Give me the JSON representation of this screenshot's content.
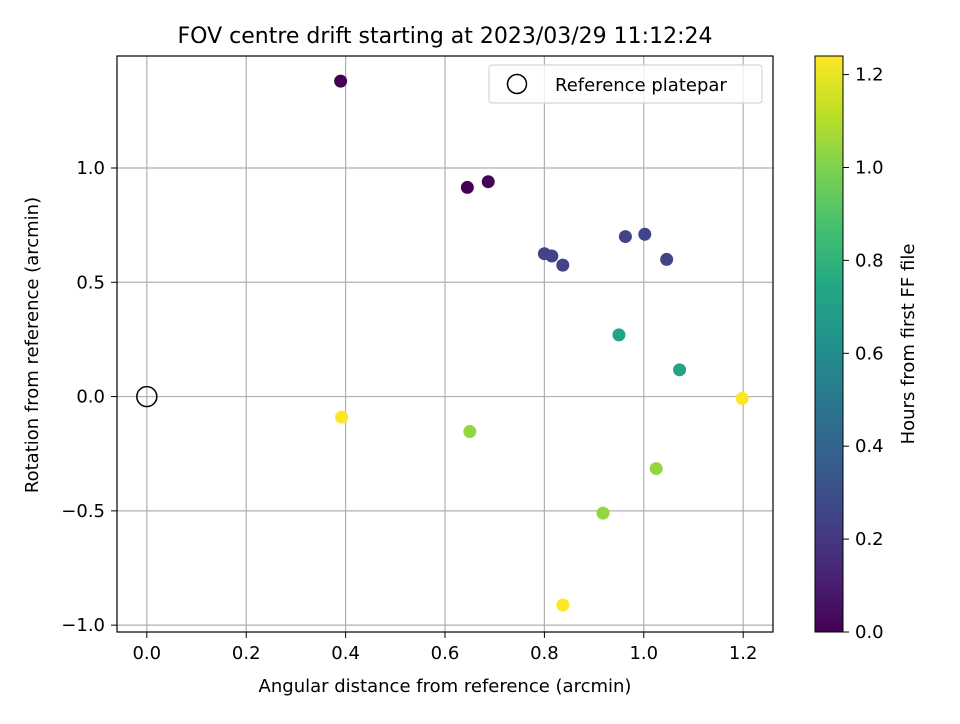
{
  "chart_data": {
    "type": "scatter",
    "title": "FOV centre drift starting at 2023/03/29 11:12:24",
    "xlabel": "Angular distance from reference (arcmin)",
    "ylabel": "Rotation from reference (arcmin)",
    "xlim": [
      -0.06,
      1.26
    ],
    "ylim": [
      -1.03,
      1.49
    ],
    "xticks": [
      0.0,
      0.2,
      0.4,
      0.6,
      0.8,
      1.0,
      1.2
    ],
    "xtick_labels": [
      "0.0",
      "0.2",
      "0.4",
      "0.6",
      "0.8",
      "1.0",
      "1.2"
    ],
    "yticks": [
      -1.0,
      -0.5,
      0.0,
      0.5,
      1.0
    ],
    "ytick_labels": [
      "−1.0",
      "−0.5",
      "0.0",
      "0.5",
      "1.0"
    ],
    "grid": true,
    "legend": {
      "placement": "top-right",
      "entries": [
        {
          "label": "Reference platepar",
          "marker": "open-circle"
        }
      ]
    },
    "reference_point": {
      "x": 0.0,
      "y": 0.0
    },
    "colorbar": {
      "label": "Hours from first FF file",
      "colormap": "viridis",
      "range": [
        0.0,
        1.24
      ],
      "ticks": [
        0.0,
        0.2,
        0.4,
        0.6,
        0.8,
        1.0,
        1.2
      ],
      "tick_labels": [
        "0.0",
        "0.2",
        "0.4",
        "0.6",
        "0.8",
        "1.0",
        "1.2"
      ]
    },
    "points": [
      {
        "x": 0.39,
        "y": 1.38,
        "hours": 0.0
      },
      {
        "x": 0.645,
        "y": 0.915,
        "hours": 0.0
      },
      {
        "x": 0.687,
        "y": 0.94,
        "hours": 0.01
      },
      {
        "x": 0.8,
        "y": 0.625,
        "hours": 0.25
      },
      {
        "x": 0.815,
        "y": 0.615,
        "hours": 0.25
      },
      {
        "x": 0.837,
        "y": 0.575,
        "hours": 0.25
      },
      {
        "x": 0.963,
        "y": 0.7,
        "hours": 0.25
      },
      {
        "x": 1.002,
        "y": 0.71,
        "hours": 0.25
      },
      {
        "x": 1.046,
        "y": 0.6,
        "hours": 0.25
      },
      {
        "x": 0.95,
        "y": 0.27,
        "hours": 0.72
      },
      {
        "x": 1.072,
        "y": 0.117,
        "hours": 0.72
      },
      {
        "x": 0.65,
        "y": -0.153,
        "hours": 1.04
      },
      {
        "x": 1.025,
        "y": -0.315,
        "hours": 1.04
      },
      {
        "x": 0.918,
        "y": -0.51,
        "hours": 1.04
      },
      {
        "x": 0.392,
        "y": -0.09,
        "hours": 1.24
      },
      {
        "x": 1.198,
        "y": -0.008,
        "hours": 1.24
      },
      {
        "x": 0.837,
        "y": -0.912,
        "hours": 1.24
      }
    ]
  }
}
